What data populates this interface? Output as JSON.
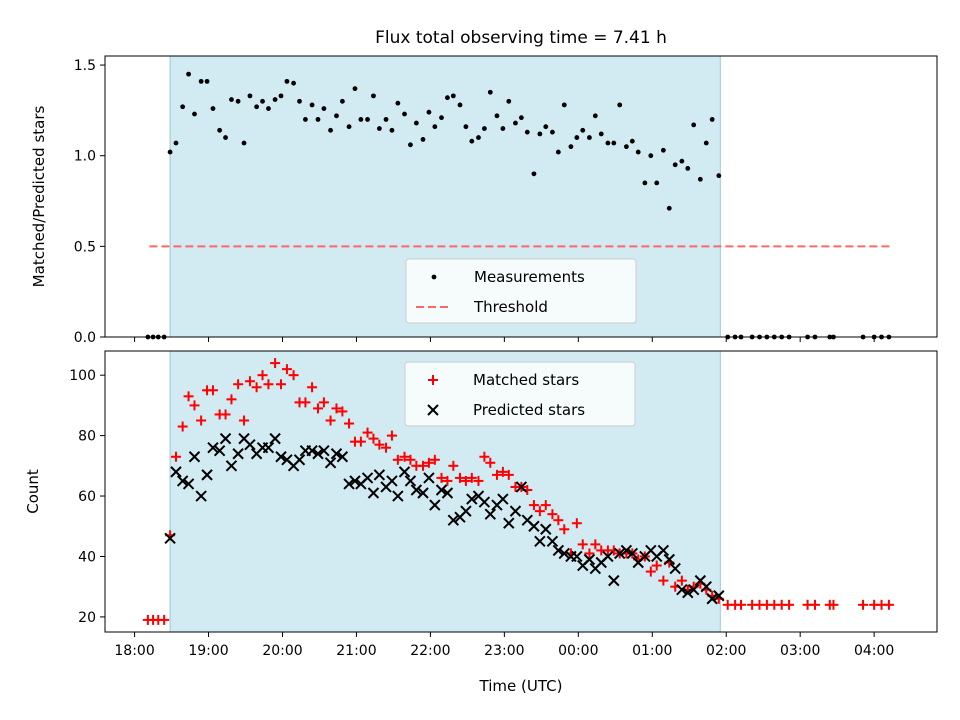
{
  "title": "Flux total observing time = 7.41 h",
  "colors": {
    "shade": "#add8e6",
    "measurement": "#000000",
    "threshold": "#ff6666",
    "matched": "#ff0000",
    "predicted": "#000000"
  },
  "chart_data": [
    {
      "type": "scatter",
      "ylabel": "Matched/Predicted stars",
      "ylim": [
        0,
        1.55
      ],
      "yticks": [
        "0.0",
        "0.5",
        "1.0",
        "1.5"
      ],
      "xlim": [
        17.6,
        28.85
      ],
      "shaded_interval": [
        18.48,
        25.92
      ],
      "legend": [
        "Measurements",
        "Threshold"
      ],
      "legend_placement": "lower-center",
      "threshold": {
        "name": "Threshold",
        "value": 0.5,
        "x": [
          18.2,
          28.25
        ]
      },
      "series": [
        {
          "name": "Measurements",
          "marker": "dot",
          "x": [
            18.18,
            18.25,
            18.32,
            18.4,
            18.48,
            18.56,
            18.65,
            18.73,
            18.81,
            18.9,
            18.98,
            19.06,
            19.15,
            19.23,
            19.31,
            19.4,
            19.48,
            19.56,
            19.65,
            19.73,
            19.81,
            19.9,
            19.98,
            20.06,
            20.15,
            20.23,
            20.31,
            20.4,
            20.48,
            20.56,
            20.65,
            20.73,
            20.81,
            20.9,
            20.98,
            21.06,
            21.15,
            21.23,
            21.31,
            21.4,
            21.48,
            21.56,
            21.65,
            21.73,
            21.81,
            21.9,
            21.98,
            22.06,
            22.15,
            22.23,
            22.31,
            22.4,
            22.48,
            22.56,
            22.65,
            22.73,
            22.81,
            22.9,
            22.98,
            23.06,
            23.15,
            23.23,
            23.31,
            23.4,
            23.48,
            23.56,
            23.65,
            23.73,
            23.81,
            23.9,
            23.98,
            24.06,
            24.15,
            24.23,
            24.31,
            24.4,
            24.48,
            24.56,
            24.65,
            24.73,
            24.81,
            24.9,
            24.98,
            25.06,
            25.15,
            25.23,
            25.31,
            25.4,
            25.48,
            25.56,
            25.65,
            25.73,
            25.81,
            25.9,
            26.02,
            26.12,
            26.2,
            26.35,
            26.45,
            26.55,
            26.65,
            26.75,
            26.85,
            27.1,
            27.2,
            27.4,
            27.45,
            27.85,
            28.0,
            28.1,
            28.2
          ],
          "y": [
            0,
            0,
            0,
            0,
            1.02,
            1.07,
            1.27,
            1.45,
            1.23,
            1.41,
            1.41,
            1.26,
            1.14,
            1.1,
            1.31,
            1.3,
            1.07,
            1.33,
            1.27,
            1.3,
            1.26,
            1.31,
            1.33,
            1.41,
            1.4,
            1.3,
            1.2,
            1.28,
            1.2,
            1.26,
            1.14,
            1.22,
            1.3,
            1.16,
            1.37,
            1.2,
            1.2,
            1.33,
            1.15,
            1.2,
            1.14,
            1.29,
            1.23,
            1.06,
            1.18,
            1.09,
            1.24,
            1.16,
            1.21,
            1.32,
            1.33,
            1.28,
            1.16,
            1.08,
            1.1,
            1.15,
            1.35,
            1.22,
            1.15,
            1.3,
            1.18,
            1.21,
            1.13,
            0.9,
            1.12,
            1.16,
            1.13,
            1.02,
            1.28,
            1.05,
            1.1,
            1.14,
            1.1,
            1.22,
            1.12,
            1.07,
            1.07,
            1.28,
            1.05,
            1.08,
            1.02,
            0.85,
            1.0,
            0.85,
            1.03,
            0.71,
            0.95,
            0.97,
            0.93,
            1.17,
            0.87,
            1.07,
            1.2,
            0.89,
            0,
            0,
            0,
            0,
            0,
            0,
            0,
            0,
            0,
            0,
            0,
            0,
            0,
            0,
            0,
            0,
            0
          ]
        }
      ]
    },
    {
      "type": "scatter",
      "xlabel": "Time (UTC)",
      "ylabel": "Count",
      "ylim": [
        15,
        108
      ],
      "yticks": [
        "20",
        "40",
        "60",
        "80",
        "100"
      ],
      "xlim": [
        17.6,
        28.85
      ],
      "xticks": [
        "18:00",
        "19:00",
        "20:00",
        "21:00",
        "22:00",
        "23:00",
        "00:00",
        "01:00",
        "02:00",
        "03:00",
        "04:00"
      ],
      "shaded_interval": [
        18.48,
        25.92
      ],
      "legend": [
        "Matched stars",
        "Predicted stars"
      ],
      "legend_placement": "top-center",
      "series": [
        {
          "name": "Matched stars",
          "marker": "plus",
          "x": [
            18.18,
            18.25,
            18.32,
            18.4,
            18.48,
            18.56,
            18.65,
            18.73,
            18.81,
            18.9,
            18.98,
            19.06,
            19.15,
            19.23,
            19.31,
            19.4,
            19.48,
            19.56,
            19.65,
            19.73,
            19.81,
            19.9,
            19.98,
            20.06,
            20.15,
            20.23,
            20.31,
            20.4,
            20.48,
            20.56,
            20.65,
            20.73,
            20.81,
            20.9,
            20.98,
            21.06,
            21.15,
            21.23,
            21.31,
            21.4,
            21.48,
            21.56,
            21.65,
            21.73,
            21.81,
            21.9,
            21.98,
            22.06,
            22.15,
            22.23,
            22.31,
            22.4,
            22.48,
            22.56,
            22.65,
            22.73,
            22.81,
            22.9,
            22.98,
            23.06,
            23.15,
            23.23,
            23.31,
            23.4,
            23.48,
            23.56,
            23.65,
            23.73,
            23.81,
            23.9,
            23.98,
            24.06,
            24.15,
            24.23,
            24.31,
            24.4,
            24.48,
            24.56,
            24.65,
            24.73,
            24.81,
            24.9,
            24.98,
            25.06,
            25.15,
            25.23,
            25.31,
            25.4,
            25.48,
            25.56,
            25.65,
            25.73,
            25.81,
            25.9,
            26.02,
            26.12,
            26.2,
            26.35,
            26.45,
            26.55,
            26.65,
            26.75,
            26.85,
            27.1,
            27.2,
            27.4,
            27.45,
            27.85,
            28.0,
            28.1,
            28.2
          ],
          "y": [
            19,
            19,
            19,
            19,
            47,
            73,
            83,
            93,
            90,
            85,
            95,
            95,
            87,
            87,
            92,
            97,
            85,
            98,
            96,
            100,
            97,
            104,
            97,
            102,
            100,
            91,
            91,
            96,
            89,
            91,
            85,
            89,
            88,
            84,
            78,
            78,
            81,
            79,
            77,
            76,
            80,
            72,
            73,
            72,
            70,
            70,
            71,
            72,
            66,
            65,
            70,
            66,
            65,
            66,
            65,
            73,
            71,
            67,
            68,
            67,
            63,
            63,
            62,
            57,
            55,
            57,
            54,
            52,
            49,
            41,
            51,
            44,
            41,
            44,
            42,
            42,
            42,
            41,
            41,
            41,
            39,
            40,
            35,
            37,
            32,
            38,
            30,
            32,
            29,
            30,
            31,
            29,
            27,
            26,
            24,
            24,
            24,
            24,
            24,
            24,
            24,
            24,
            24,
            24,
            24,
            24,
            24,
            24,
            24,
            24,
            24
          ]
        },
        {
          "name": "Predicted stars",
          "marker": "x",
          "x": [
            18.48,
            18.56,
            18.65,
            18.73,
            18.81,
            18.9,
            18.98,
            19.06,
            19.15,
            19.23,
            19.31,
            19.4,
            19.48,
            19.56,
            19.65,
            19.73,
            19.81,
            19.9,
            19.98,
            20.06,
            20.15,
            20.23,
            20.31,
            20.4,
            20.48,
            20.56,
            20.65,
            20.73,
            20.81,
            20.9,
            20.98,
            21.06,
            21.15,
            21.23,
            21.31,
            21.4,
            21.48,
            21.56,
            21.65,
            21.73,
            21.81,
            21.9,
            21.98,
            22.06,
            22.15,
            22.23,
            22.31,
            22.4,
            22.48,
            22.56,
            22.65,
            22.73,
            22.81,
            22.9,
            22.98,
            23.06,
            23.15,
            23.23,
            23.31,
            23.4,
            23.48,
            23.56,
            23.65,
            23.73,
            23.81,
            23.9,
            23.98,
            24.06,
            24.15,
            24.23,
            24.31,
            24.4,
            24.48,
            24.56,
            24.65,
            24.73,
            24.81,
            24.9,
            24.98,
            25.06,
            25.15,
            25.23,
            25.31,
            25.4,
            25.48,
            25.56,
            25.65,
            25.73,
            25.81,
            25.9
          ],
          "y": [
            46,
            68,
            65,
            64,
            73,
            60,
            67,
            76,
            75,
            79,
            70,
            74,
            79,
            77,
            74,
            76,
            76,
            79,
            73,
            72,
            70,
            72,
            75,
            75,
            74,
            75,
            71,
            74,
            73,
            64,
            65,
            64,
            66,
            61,
            67,
            63,
            65,
            60,
            68,
            65,
            62,
            61,
            66,
            57,
            62,
            61,
            52,
            53,
            55,
            59,
            60,
            58,
            54,
            57,
            59,
            51,
            55,
            63,
            52,
            50,
            45,
            49,
            45,
            42,
            41,
            40,
            40,
            37,
            39,
            36,
            38,
            40,
            32,
            41,
            42,
            41,
            38,
            40,
            42,
            40,
            42,
            39,
            36,
            29,
            28,
            29,
            32,
            30,
            26,
            27
          ]
        }
      ]
    }
  ]
}
